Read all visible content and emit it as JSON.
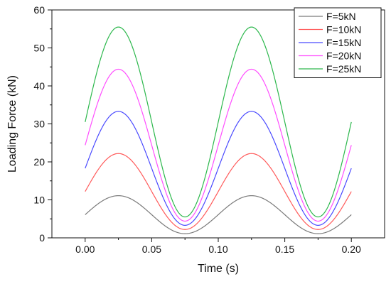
{
  "chart_data": {
    "type": "line",
    "title": "",
    "xlabel": "Time (s)",
    "ylabel": "Loading Force (kN)",
    "xlim": [
      -0.025,
      0.225
    ],
    "ylim": [
      0,
      60
    ],
    "x_ticks": [
      0.0,
      0.05,
      0.1,
      0.15,
      0.2
    ],
    "x_tick_labels": [
      "0.00",
      "0.05",
      "0.10",
      "0.15",
      "0.20"
    ],
    "y_ticks": [
      0,
      10,
      20,
      30,
      40,
      50,
      60
    ],
    "y_tick_labels": [
      "0",
      "10",
      "20",
      "30",
      "40",
      "50",
      "60"
    ],
    "grid": false,
    "legend_position": "top-right",
    "period": 0.1,
    "peak_time": 0.025,
    "series": [
      {
        "name": "F=5kN",
        "color": "#7a7a7a",
        "min": 1.1,
        "max": 11.1
      },
      {
        "name": "F=10kN",
        "color": "#ff5a5a",
        "min": 2.2,
        "max": 22.2
      },
      {
        "name": "F=15kN",
        "color": "#4a4aff",
        "min": 3.3,
        "max": 33.3
      },
      {
        "name": "F=20kN",
        "color": "#ff4dff",
        "min": 4.4,
        "max": 44.4
      },
      {
        "name": "F=25kN",
        "color": "#2db84d",
        "min": 5.5,
        "max": 55.5
      }
    ],
    "x_range": [
      0.0,
      0.2
    ]
  }
}
